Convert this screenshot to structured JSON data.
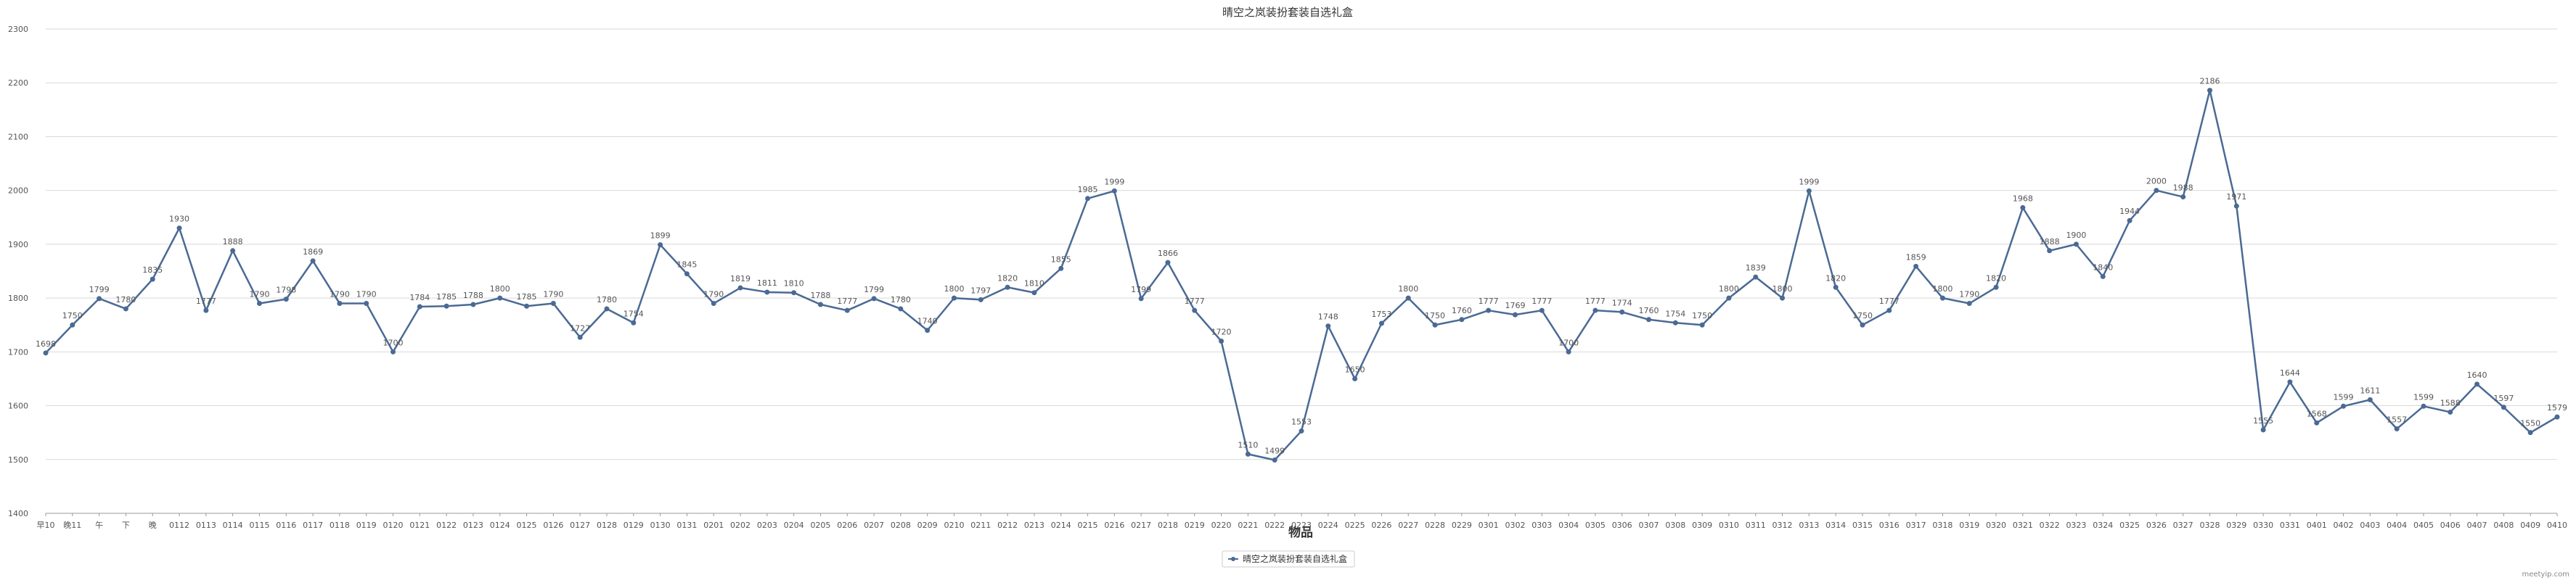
{
  "chart_data": {
    "type": "line",
    "title": "晴空之岚装扮套装自选礼盒",
    "xlabel": "物品",
    "ylabel": "",
    "ylim": [
      1400,
      2300
    ],
    "yticks": [
      1400,
      1500,
      1600,
      1700,
      1800,
      1900,
      2000,
      2100,
      2200,
      2300
    ],
    "grid": true,
    "legend_position": "bottom-center",
    "categories": [
      "早10",
      "晚11",
      "午",
      "下",
      "晚",
      "0112",
      "0113",
      "0114",
      "0115",
      "0116",
      "0117",
      "0118",
      "0119",
      "0120",
      "0121",
      "0122",
      "0123",
      "0124",
      "0125",
      "0126",
      "0127",
      "0128",
      "0129",
      "0130",
      "0131",
      "0201",
      "0202",
      "0203",
      "0204",
      "0205",
      "0206",
      "0207",
      "0208",
      "0209",
      "0210",
      "0211",
      "0212",
      "0213",
      "0214",
      "0215",
      "0216",
      "0217",
      "0218",
      "0219",
      "0220",
      "0221",
      "0222",
      "0223",
      "0224",
      "0225",
      "0226",
      "0227",
      "0228",
      "0229",
      "0301",
      "0302",
      "0303",
      "0304",
      "0305",
      "0306",
      "0307",
      "0308",
      "0309",
      "0310",
      "0311",
      "0312",
      "0313",
      "0314",
      "0315",
      "0316",
      "0317",
      "0318",
      "0319",
      "0320",
      "0321",
      "0322",
      "0323",
      "0324",
      "0325",
      "0326",
      "0327",
      "0328",
      "0329",
      "0330",
      "0331",
      "0401",
      "0402",
      "0403",
      "0404",
      "0405",
      "0406",
      "0407",
      "0408",
      "0409",
      "0410"
    ],
    "series": [
      {
        "name": "晴空之岚装扮套装自选礼盒",
        "color": "#4a6a94",
        "values": [
          1698,
          1750,
          1799,
          1780,
          1835,
          1930,
          1777,
          1888,
          1790,
          1798,
          1869,
          1790,
          1790,
          1700,
          1784,
          1785,
          1788,
          1800,
          1785,
          1790,
          1727,
          1780,
          1754,
          1899,
          1845,
          1790,
          1819,
          1811,
          1810,
          1788,
          1777,
          1799,
          1780,
          1740,
          1800,
          1797,
          1820,
          1810,
          1855,
          1985,
          1999,
          1799,
          1866,
          1777,
          1720,
          1510,
          1499,
          1553,
          1748,
          1650,
          1753,
          1800,
          1750,
          1760,
          1777,
          1769,
          1777,
          1700,
          1777,
          1774,
          1760,
          1754,
          1750,
          1800,
          1839,
          1800,
          1999,
          1820,
          1750,
          1777,
          1859,
          1800,
          1790,
          1820,
          1968,
          1888,
          1900,
          1840,
          1944,
          2000,
          1988,
          2186,
          1971,
          1555,
          1644,
          1568,
          1599,
          1611,
          1557,
          1599,
          1588,
          1640,
          1597,
          1550,
          1579
        ]
      }
    ]
  },
  "watermark": "meetyip.com"
}
